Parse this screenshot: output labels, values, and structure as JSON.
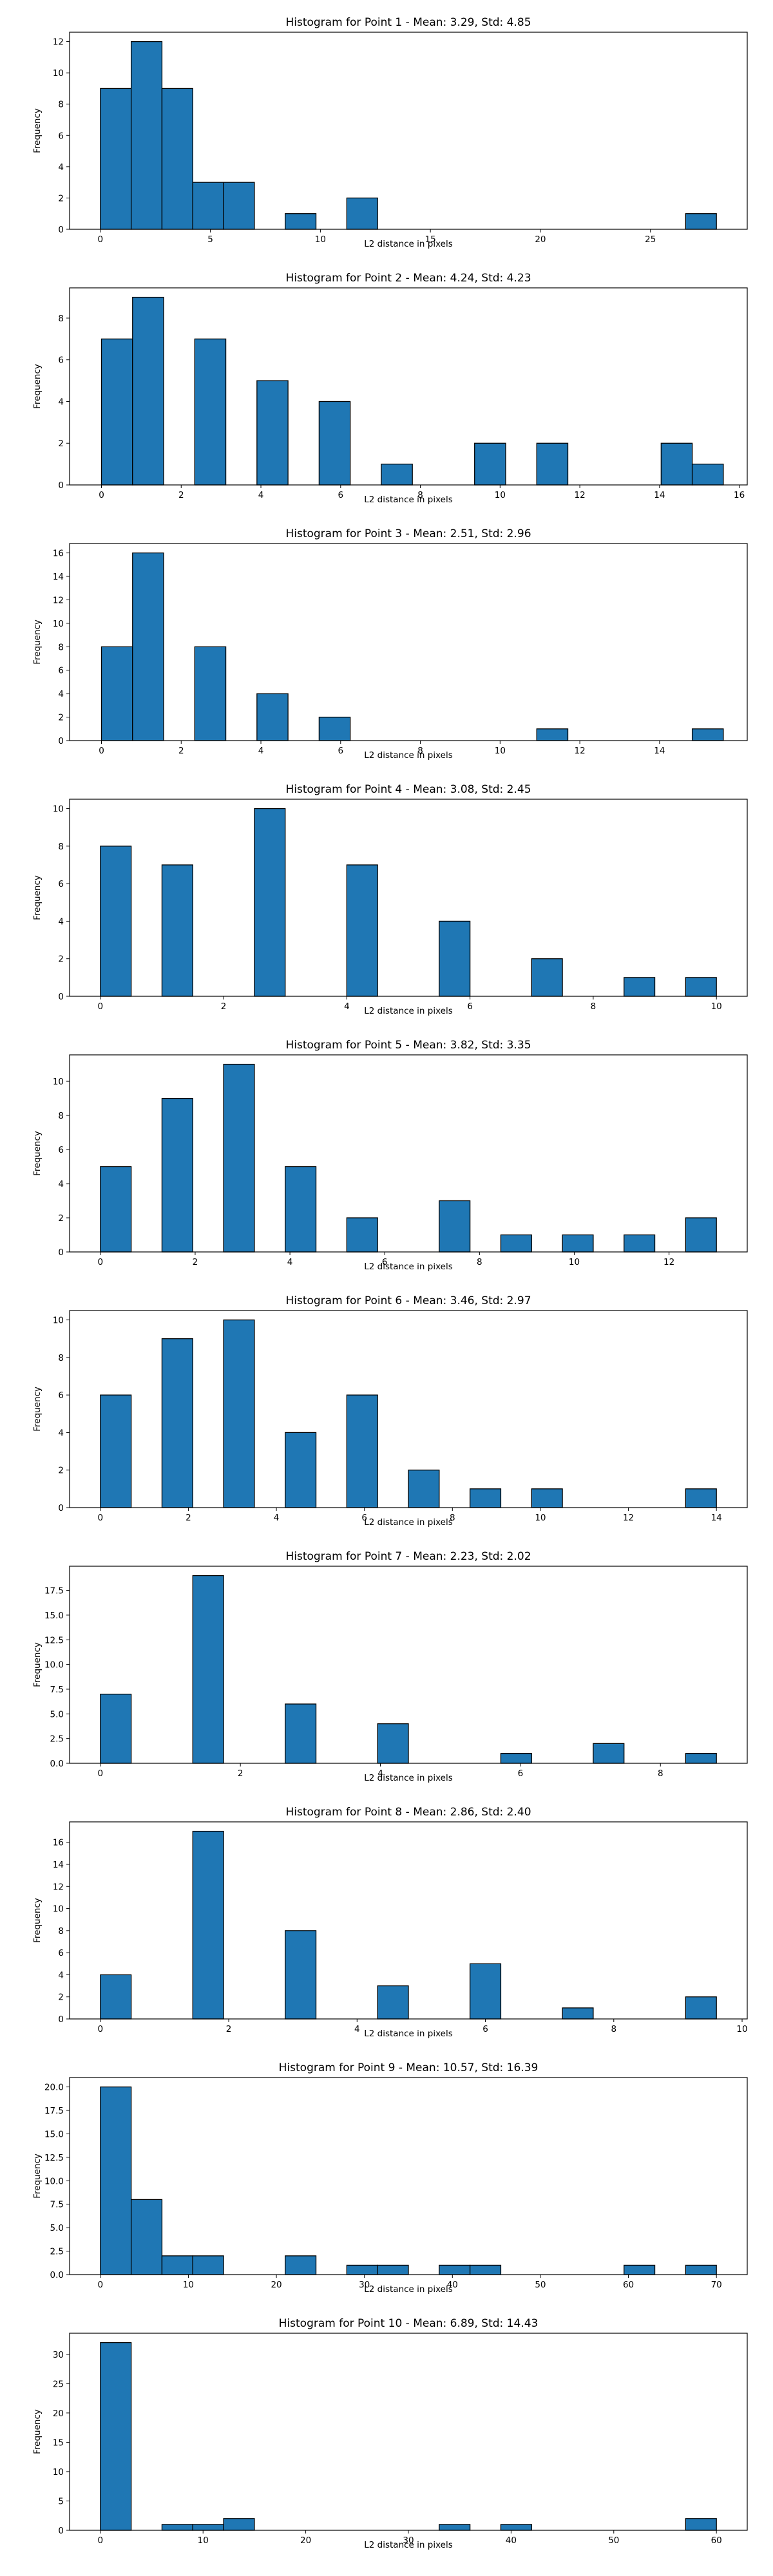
{
  "colors": {
    "bar_fill": "#1f77b4",
    "bar_edge": "#000000",
    "background": "#ffffff"
  },
  "chart_data": [
    {
      "type": "bar",
      "title": "Histogram for Point 1 - Mean: 3.29, Std: 4.85",
      "xlabel": "L2 distance in pixels",
      "ylabel": "Frequency",
      "xlim": [
        -1.4,
        29.4
      ],
      "ylim": [
        0,
        12.6
      ],
      "xticks": [
        0,
        5,
        10,
        15,
        20,
        25
      ],
      "yticks": [
        0,
        2,
        4,
        6,
        8,
        10,
        12
      ],
      "bin_width": 1.4,
      "bins": [
        {
          "x": 0.0,
          "value": 9
        },
        {
          "x": 1.4,
          "value": 12
        },
        {
          "x": 2.8,
          "value": 9
        },
        {
          "x": 4.2,
          "value": 3
        },
        {
          "x": 5.6,
          "value": 3
        },
        {
          "x": 8.4,
          "value": 1
        },
        {
          "x": 11.2,
          "value": 2
        },
        {
          "x": 26.6,
          "value": 1
        }
      ]
    },
    {
      "type": "bar",
      "title": "Histogram for Point 2 - Mean: 4.24, Std: 4.23",
      "xlabel": "L2 distance in pixels",
      "ylabel": "Frequency",
      "xlim": [
        -0.8,
        16.2
      ],
      "ylim": [
        0,
        9.45
      ],
      "xticks": [
        0,
        2,
        4,
        6,
        8,
        10,
        12,
        14,
        16
      ],
      "yticks": [
        0,
        2,
        4,
        6,
        8
      ],
      "bin_width": 0.78,
      "bins": [
        {
          "x": 0.0,
          "value": 7
        },
        {
          "x": 0.78,
          "value": 9
        },
        {
          "x": 2.34,
          "value": 7
        },
        {
          "x": 3.9,
          "value": 5
        },
        {
          "x": 5.46,
          "value": 4
        },
        {
          "x": 7.02,
          "value": 1
        },
        {
          "x": 9.36,
          "value": 2
        },
        {
          "x": 10.92,
          "value": 2
        },
        {
          "x": 14.04,
          "value": 2
        },
        {
          "x": 14.82,
          "value": 1
        }
      ]
    },
    {
      "type": "bar",
      "title": "Histogram for Point 3 - Mean: 2.51, Std: 2.96",
      "xlabel": "L2 distance in pixels",
      "ylabel": "Frequency",
      "xlim": [
        -0.8,
        16.2
      ],
      "ylim": [
        0,
        16.8
      ],
      "xticks": [
        0,
        2,
        4,
        6,
        8,
        10,
        12,
        14
      ],
      "yticks": [
        0,
        2,
        4,
        6,
        8,
        10,
        12,
        14,
        16
      ],
      "bin_width": 0.78,
      "bins": [
        {
          "x": 0.0,
          "value": 8
        },
        {
          "x": 0.78,
          "value": 16
        },
        {
          "x": 2.34,
          "value": 8
        },
        {
          "x": 3.9,
          "value": 4
        },
        {
          "x": 5.46,
          "value": 2
        },
        {
          "x": 10.92,
          "value": 1
        },
        {
          "x": 14.82,
          "value": 1
        }
      ]
    },
    {
      "type": "bar",
      "title": "Histogram for Point 4 - Mean: 3.08, Std: 2.45",
      "xlabel": "L2 distance in pixels",
      "ylabel": "Frequency",
      "xlim": [
        -0.5,
        10.5
      ],
      "ylim": [
        0,
        10.5
      ],
      "xticks": [
        0,
        2,
        4,
        6,
        8,
        10
      ],
      "yticks": [
        0,
        2,
        4,
        6,
        8,
        10
      ],
      "bin_width": 0.5,
      "bins": [
        {
          "x": 0.0,
          "value": 8
        },
        {
          "x": 1.0,
          "value": 7
        },
        {
          "x": 2.5,
          "value": 10
        },
        {
          "x": 4.0,
          "value": 7
        },
        {
          "x": 5.5,
          "value": 4
        },
        {
          "x": 7.0,
          "value": 2
        },
        {
          "x": 8.5,
          "value": 1
        },
        {
          "x": 9.5,
          "value": 1
        }
      ]
    },
    {
      "type": "bar",
      "title": "Histogram for Point 5 - Mean: 3.82, Std: 3.35",
      "xlabel": "L2 distance in pixels",
      "ylabel": "Frequency",
      "xlim": [
        -0.65,
        13.65
      ],
      "ylim": [
        0,
        11.55
      ],
      "xticks": [
        0,
        2,
        4,
        6,
        8,
        10,
        12
      ],
      "yticks": [
        0,
        2,
        4,
        6,
        8,
        10
      ],
      "bin_width": 0.65,
      "bins": [
        {
          "x": 0.0,
          "value": 5
        },
        {
          "x": 1.3,
          "value": 9
        },
        {
          "x": 2.6,
          "value": 11
        },
        {
          "x": 3.9,
          "value": 5
        },
        {
          "x": 5.2,
          "value": 2
        },
        {
          "x": 7.15,
          "value": 3
        },
        {
          "x": 8.45,
          "value": 1
        },
        {
          "x": 9.75,
          "value": 1
        },
        {
          "x": 11.05,
          "value": 1
        },
        {
          "x": 12.35,
          "value": 2
        }
      ]
    },
    {
      "type": "bar",
      "title": "Histogram for Point 6 - Mean: 3.46, Std: 2.97",
      "xlabel": "L2 distance in pixels",
      "ylabel": "Frequency",
      "xlim": [
        -0.7,
        14.7
      ],
      "ylim": [
        0,
        10.5
      ],
      "xticks": [
        0,
        2,
        4,
        6,
        8,
        10,
        12,
        14
      ],
      "yticks": [
        0,
        2,
        4,
        6,
        8,
        10
      ],
      "bin_width": 0.7,
      "bins": [
        {
          "x": 0.0,
          "value": 6
        },
        {
          "x": 1.4,
          "value": 9
        },
        {
          "x": 2.8,
          "value": 10
        },
        {
          "x": 4.2,
          "value": 4
        },
        {
          "x": 5.6,
          "value": 6
        },
        {
          "x": 7.0,
          "value": 2
        },
        {
          "x": 8.4,
          "value": 1
        },
        {
          "x": 9.8,
          "value": 1
        },
        {
          "x": 13.3,
          "value": 1
        }
      ]
    },
    {
      "type": "bar",
      "title": "Histogram for Point 7 - Mean: 2.23, Std: 2.02",
      "xlabel": "L2 distance in pixels",
      "ylabel": "Frequency",
      "xlim": [
        -0.44,
        9.24
      ],
      "ylim": [
        0,
        19.95
      ],
      "xticks": [
        0,
        2,
        4,
        6,
        8
      ],
      "ytick_labels": [
        "0.0",
        "2.5",
        "5.0",
        "7.5",
        "10.0",
        "12.5",
        "15.0",
        "17.5"
      ],
      "yticks": [
        0,
        2.5,
        5,
        7.5,
        10,
        12.5,
        15,
        17.5
      ],
      "bin_width": 0.44,
      "bins": [
        {
          "x": 0.0,
          "value": 7
        },
        {
          "x": 1.32,
          "value": 19
        },
        {
          "x": 2.64,
          "value": 6
        },
        {
          "x": 3.96,
          "value": 4
        },
        {
          "x": 5.72,
          "value": 1
        },
        {
          "x": 7.04,
          "value": 2
        },
        {
          "x": 8.36,
          "value": 1
        }
      ]
    },
    {
      "type": "bar",
      "title": "Histogram for Point 8 - Mean: 2.86, Std: 2.40",
      "xlabel": "L2 distance in pixels",
      "ylabel": "Frequency",
      "xlim": [
        -0.48,
        10.08
      ],
      "ylim": [
        0,
        17.85
      ],
      "xticks": [
        0,
        2,
        4,
        6,
        8,
        10
      ],
      "yticks": [
        0,
        2,
        4,
        6,
        8,
        10,
        12,
        14,
        16
      ],
      "bin_width": 0.48,
      "bins": [
        {
          "x": 0.0,
          "value": 4
        },
        {
          "x": 1.44,
          "value": 17
        },
        {
          "x": 2.88,
          "value": 8
        },
        {
          "x": 4.32,
          "value": 3
        },
        {
          "x": 5.76,
          "value": 5
        },
        {
          "x": 7.2,
          "value": 1
        },
        {
          "x": 9.12,
          "value": 2
        }
      ]
    },
    {
      "type": "bar",
      "title": "Histogram for Point 9 - Mean: 10.57, Std: 16.39",
      "xlabel": "L2 distance in pixels",
      "ylabel": "Frequency",
      "xlim": [
        -3.5,
        73.5
      ],
      "ylim": [
        0,
        21
      ],
      "xticks": [
        0,
        10,
        20,
        30,
        40,
        50,
        60,
        70
      ],
      "ytick_labels": [
        "0.0",
        "2.5",
        "5.0",
        "7.5",
        "10.0",
        "12.5",
        "15.0",
        "17.5",
        "20.0"
      ],
      "yticks": [
        0,
        2.5,
        5,
        7.5,
        10,
        12.5,
        15,
        17.5,
        20
      ],
      "bin_width": 3.5,
      "bins": [
        {
          "x": 0.0,
          "value": 20
        },
        {
          "x": 3.5,
          "value": 8
        },
        {
          "x": 7.0,
          "value": 2
        },
        {
          "x": 10.5,
          "value": 2
        },
        {
          "x": 21.0,
          "value": 2
        },
        {
          "x": 28.0,
          "value": 1
        },
        {
          "x": 31.5,
          "value": 1
        },
        {
          "x": 38.5,
          "value": 1
        },
        {
          "x": 42.0,
          "value": 1
        },
        {
          "x": 59.5,
          "value": 1
        },
        {
          "x": 66.5,
          "value": 1
        }
      ]
    },
    {
      "type": "bar",
      "title": "Histogram for Point 10 - Mean: 6.89, Std: 14.43",
      "xlabel": "L2 distance in pixels",
      "ylabel": "Frequency",
      "xlim": [
        -3.0,
        63.0
      ],
      "ylim": [
        0,
        33.6
      ],
      "xticks": [
        0,
        10,
        20,
        30,
        40,
        50,
        60
      ],
      "yticks": [
        0,
        5,
        10,
        15,
        20,
        25,
        30
      ],
      "bin_width": 3.0,
      "bins": [
        {
          "x": 0.0,
          "value": 32
        },
        {
          "x": 6.0,
          "value": 1
        },
        {
          "x": 9.0,
          "value": 1
        },
        {
          "x": 12.0,
          "value": 2
        },
        {
          "x": 33.0,
          "value": 1
        },
        {
          "x": 39.0,
          "value": 1
        },
        {
          "x": 57.0,
          "value": 2
        }
      ]
    }
  ]
}
